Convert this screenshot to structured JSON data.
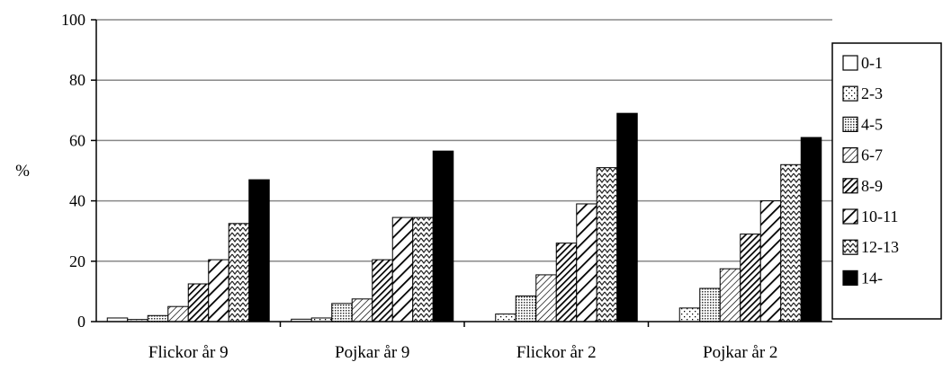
{
  "chart_data": {
    "type": "bar",
    "title": "",
    "xlabel": "",
    "ylabel": "%",
    "ylim": [
      0,
      100
    ],
    "yticks": [
      "0",
      "20",
      "40",
      "60",
      "80",
      "100"
    ],
    "grid": true,
    "legend_position": "right",
    "categories": [
      "Flickor år 9",
      "Pojkar år 9",
      "Flickor år 2",
      "Pojkar år 2"
    ],
    "series": [
      {
        "name": "0-1",
        "pattern": "empty",
        "values": [
          1.2,
          0.8,
          0,
          0
        ]
      },
      {
        "name": "2-3",
        "pattern": "sparse-dots",
        "values": [
          0.7,
          1.2,
          2.5,
          4.5
        ]
      },
      {
        "name": "4-5",
        "pattern": "dense-dots",
        "values": [
          2.0,
          6.0,
          8.5,
          11.0
        ]
      },
      {
        "name": "6-7",
        "pattern": "light-diagonal",
        "values": [
          5.0,
          7.5,
          15.5,
          17.5
        ]
      },
      {
        "name": "8-9",
        "pattern": "dark-diagonal",
        "values": [
          12.5,
          20.5,
          26.0,
          29.0
        ]
      },
      {
        "name": "10-11",
        "pattern": "wide-diagonal",
        "values": [
          20.5,
          34.5,
          39.0,
          40.0
        ]
      },
      {
        "name": "12-13",
        "pattern": "zigzag",
        "values": [
          32.5,
          34.5,
          51.0,
          52.0
        ]
      },
      {
        "name": "14-",
        "pattern": "black",
        "values": [
          47.0,
          56.5,
          69.0,
          61.0
        ]
      }
    ]
  }
}
